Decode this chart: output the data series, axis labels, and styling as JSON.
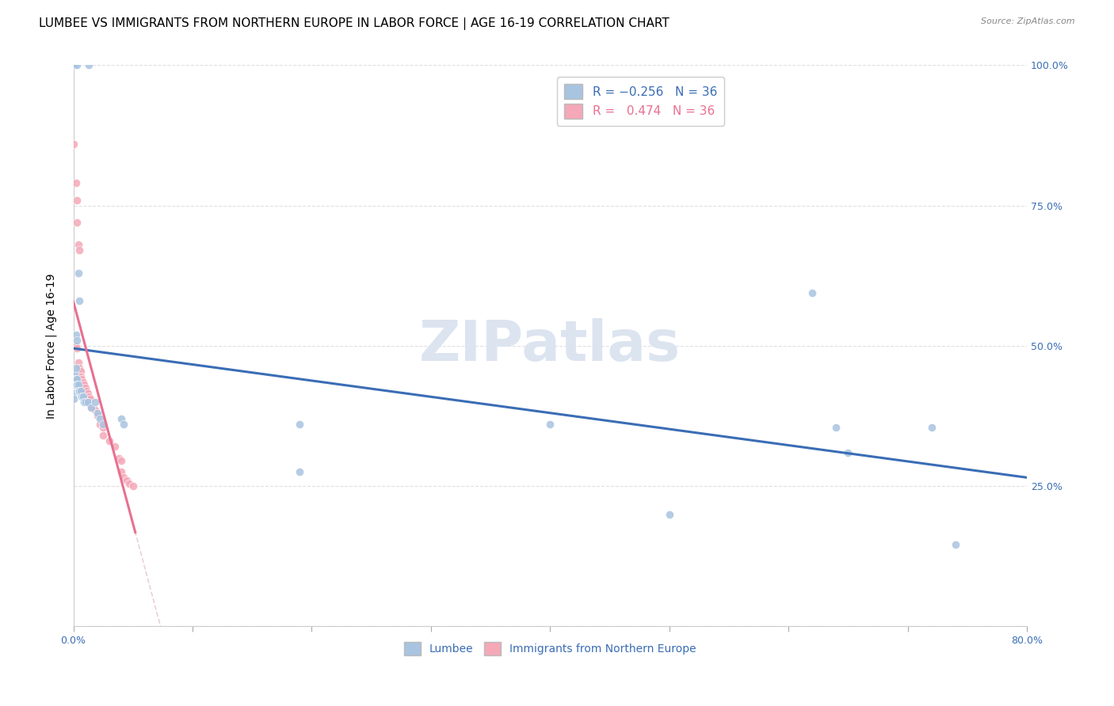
{
  "title": "LUMBEE VS IMMIGRANTS FROM NORTHERN EUROPE IN LABOR FORCE | AGE 16-19 CORRELATION CHART",
  "source": "Source: ZipAtlas.com",
  "ylabel": "In Labor Force | Age 16-19",
  "xlim": [
    0.0,
    0.8
  ],
  "ylim": [
    0.0,
    1.0
  ],
  "ytick_labels_right": [
    "100.0%",
    "75.0%",
    "50.0%",
    "25.0%"
  ],
  "ytick_positions_right": [
    1.0,
    0.75,
    0.5,
    0.25
  ],
  "xtick_positions": [
    0.0,
    0.1,
    0.2,
    0.3,
    0.4,
    0.5,
    0.6,
    0.7,
    0.8
  ],
  "lumbee_scatter": [
    [
      0.0,
      1.0
    ],
    [
      0.001,
      1.0
    ],
    [
      0.003,
      1.0
    ],
    [
      0.013,
      1.0
    ],
    [
      0.002,
      0.52
    ],
    [
      0.003,
      0.51
    ],
    [
      0.004,
      0.63
    ],
    [
      0.005,
      0.58
    ],
    [
      0.0,
      0.435
    ],
    [
      0.0,
      0.415
    ],
    [
      0.0,
      0.405
    ],
    [
      0.001,
      0.45
    ],
    [
      0.001,
      0.44
    ],
    [
      0.001,
      0.43
    ],
    [
      0.002,
      0.46
    ],
    [
      0.002,
      0.44
    ],
    [
      0.003,
      0.44
    ],
    [
      0.003,
      0.43
    ],
    [
      0.004,
      0.43
    ],
    [
      0.004,
      0.42
    ],
    [
      0.005,
      0.42
    ],
    [
      0.006,
      0.42
    ],
    [
      0.007,
      0.41
    ],
    [
      0.008,
      0.41
    ],
    [
      0.009,
      0.4
    ],
    [
      0.01,
      0.4
    ],
    [
      0.012,
      0.4
    ],
    [
      0.015,
      0.39
    ],
    [
      0.018,
      0.4
    ],
    [
      0.02,
      0.38
    ],
    [
      0.022,
      0.37
    ],
    [
      0.025,
      0.36
    ],
    [
      0.04,
      0.37
    ],
    [
      0.042,
      0.36
    ],
    [
      0.19,
      0.36
    ],
    [
      0.19,
      0.275
    ],
    [
      0.4,
      0.36
    ],
    [
      0.5,
      0.2
    ],
    [
      0.62,
      0.595
    ],
    [
      0.64,
      0.355
    ],
    [
      0.65,
      0.31
    ],
    [
      0.72,
      0.355
    ],
    [
      0.74,
      0.145
    ]
  ],
  "immigrant_scatter": [
    [
      0.0,
      0.86
    ],
    [
      0.002,
      0.79
    ],
    [
      0.003,
      0.76
    ],
    [
      0.003,
      0.72
    ],
    [
      0.004,
      0.68
    ],
    [
      0.005,
      0.67
    ],
    [
      0.001,
      0.5
    ],
    [
      0.002,
      0.5
    ],
    [
      0.003,
      0.495
    ],
    [
      0.004,
      0.47
    ],
    [
      0.005,
      0.46
    ],
    [
      0.006,
      0.455
    ],
    [
      0.006,
      0.445
    ],
    [
      0.007,
      0.44
    ],
    [
      0.008,
      0.435
    ],
    [
      0.009,
      0.43
    ],
    [
      0.01,
      0.425
    ],
    [
      0.011,
      0.42
    ],
    [
      0.012,
      0.415
    ],
    [
      0.013,
      0.41
    ],
    [
      0.014,
      0.405
    ],
    [
      0.015,
      0.39
    ],
    [
      0.018,
      0.385
    ],
    [
      0.02,
      0.375
    ],
    [
      0.022,
      0.36
    ],
    [
      0.025,
      0.355
    ],
    [
      0.025,
      0.34
    ],
    [
      0.03,
      0.33
    ],
    [
      0.035,
      0.32
    ],
    [
      0.038,
      0.3
    ],
    [
      0.04,
      0.295
    ],
    [
      0.04,
      0.275
    ],
    [
      0.042,
      0.265
    ],
    [
      0.045,
      0.26
    ],
    [
      0.047,
      0.255
    ],
    [
      0.05,
      0.25
    ]
  ],
  "lumbee_color": "#a8c4e0",
  "immigrant_color": "#f4a8b8",
  "lumbee_line_color": "#3a6db5",
  "immigrant_line_color": "#e87090",
  "immigrant_dashed_color": "#e0b0bc",
  "background_color": "#ffffff",
  "grid_color": "#e0e0e0",
  "watermark": "ZIPatlas",
  "watermark_color": "#dce4f0",
  "title_fontsize": 11,
  "axis_label_fontsize": 10,
  "tick_fontsize": 9,
  "legend_fontsize": 11,
  "scatter_size": 55
}
